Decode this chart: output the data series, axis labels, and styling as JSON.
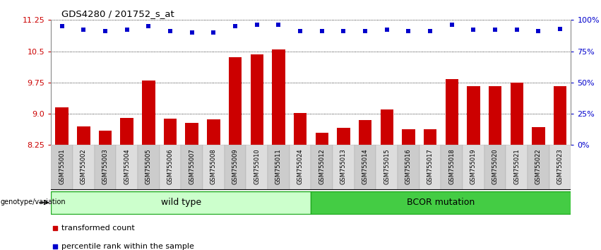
{
  "title": "GDS4280 / 201752_s_at",
  "samples": [
    "GSM755001",
    "GSM755002",
    "GSM755003",
    "GSM755004",
    "GSM755005",
    "GSM755006",
    "GSM755007",
    "GSM755008",
    "GSM755009",
    "GSM755010",
    "GSM755011",
    "GSM755024",
    "GSM755012",
    "GSM755013",
    "GSM755014",
    "GSM755015",
    "GSM755016",
    "GSM755017",
    "GSM755018",
    "GSM755019",
    "GSM755020",
    "GSM755021",
    "GSM755022",
    "GSM755023"
  ],
  "bar_values": [
    9.15,
    8.7,
    8.6,
    8.9,
    9.8,
    8.88,
    8.78,
    8.87,
    10.35,
    10.43,
    10.55,
    9.02,
    8.55,
    8.67,
    8.85,
    9.1,
    8.62,
    8.62,
    9.83,
    9.67,
    9.67,
    9.75,
    8.68,
    9.66
  ],
  "percentile_values": [
    95,
    92,
    91,
    92,
    95,
    91,
    90,
    90,
    95,
    96,
    96,
    91,
    91,
    91,
    91,
    92,
    91,
    91,
    96,
    92,
    92,
    92,
    91,
    93
  ],
  "bar_color": "#cc0000",
  "dot_color": "#0000cc",
  "ylim_left": [
    8.25,
    11.25
  ],
  "ylim_right": [
    0,
    100
  ],
  "yticks_left": [
    8.25,
    9.0,
    9.75,
    10.5,
    11.25
  ],
  "yticks_right": [
    0,
    25,
    50,
    75,
    100
  ],
  "group1_label": "wild type",
  "group1_count": 12,
  "group2_label": "BCOR mutation",
  "group2_count": 12,
  "group1_color": "#ccffcc",
  "group2_color": "#44cc44",
  "tick_bg_color": "#cccccc",
  "tick_bg_color_alt": "#dddddd",
  "genotype_label": "genotype/variation",
  "legend_bar_label": "transformed count",
  "legend_dot_label": "percentile rank within the sample",
  "bar_color_legend": "#cc0000",
  "dot_color_legend": "#0000cc"
}
